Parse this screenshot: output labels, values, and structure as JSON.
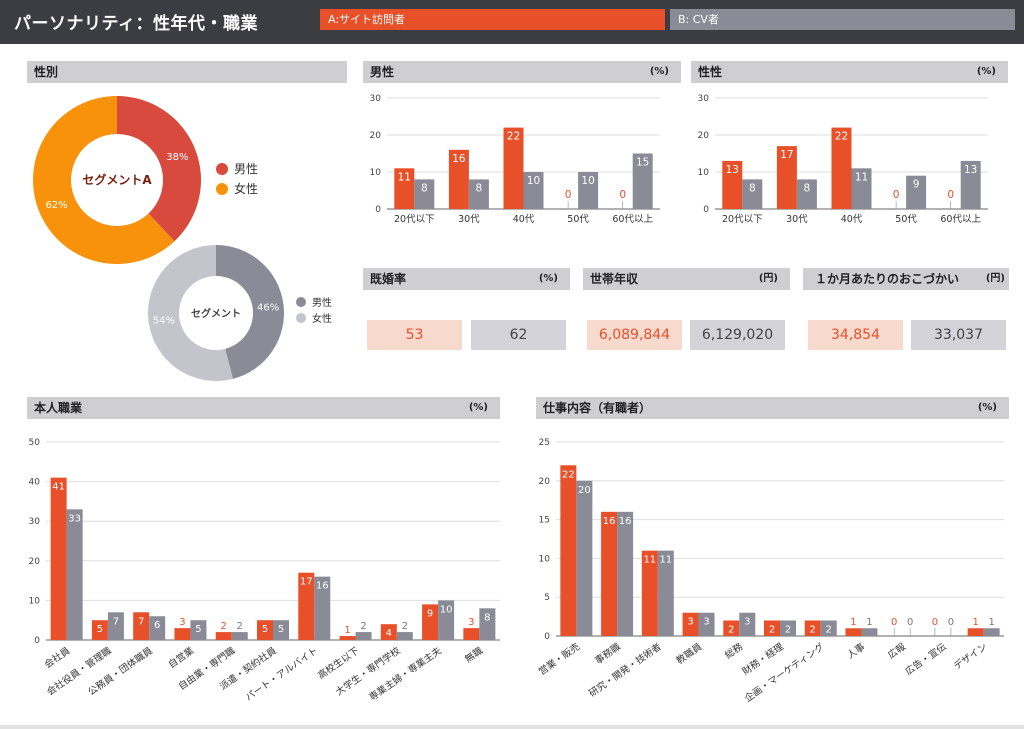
{
  "header": {
    "title": "パーソナリティ：性年代・職業",
    "legend_a": "A:サイト訪問者",
    "legend_b": "B: CV者"
  },
  "colors": {
    "a": "#e8502a",
    "b": "#8a8b96",
    "female": "#f7920a",
    "male": "#d94a3e",
    "gray_male": "#8a8b96",
    "gray_female": "#c4c5cc"
  },
  "sections": {
    "gender": {
      "title": "性別"
    },
    "male": {
      "title": "男性",
      "unit": "(%)"
    },
    "female": {
      "title": "性性",
      "unit": "(%)"
    },
    "marriage": {
      "title": "既婚率",
      "unit": "(%)"
    },
    "income": {
      "title": "世帯年収",
      "unit": "(円)"
    },
    "allowance": {
      "title": "１か月あたりのおこづかい",
      "unit": "(円)"
    },
    "occupation": {
      "title": "本人職業",
      "unit": "(%)"
    },
    "job": {
      "title": "仕事内容（有職者）",
      "unit": "(%)"
    }
  },
  "kpi": {
    "marriage": {
      "a": "53",
      "b": "62"
    },
    "income": {
      "a": "6,089,844",
      "b": "6,129,020"
    },
    "allowance": {
      "a": "34,854",
      "b": "33,037"
    }
  },
  "chart_data": [
    {
      "id": "donut-a",
      "type": "pie",
      "center_label": "セグメントA",
      "slices": [
        {
          "name": "男性",
          "value": 38,
          "label": "38%"
        },
        {
          "name": "女性",
          "value": 62,
          "label": "62%"
        }
      ],
      "legend": [
        "男性",
        "女性"
      ]
    },
    {
      "id": "donut-b",
      "type": "pie",
      "center_label": "セグメント",
      "slices": [
        {
          "name": "男性",
          "value": 46,
          "label": "46%"
        },
        {
          "name": "女性",
          "value": 54,
          "label": "54%"
        }
      ],
      "legend": [
        "男性",
        "女性"
      ]
    },
    {
      "id": "male-age",
      "type": "bar",
      "categories": [
        "20代以下",
        "30代",
        "40代",
        "50代",
        "60代以上"
      ],
      "series": [
        {
          "values": [
            11,
            16,
            22,
            0,
            0
          ]
        },
        {
          "values": [
            8,
            8,
            10,
            10,
            15
          ]
        }
      ],
      "yticks": [
        0,
        10,
        20,
        30
      ],
      "ylim": [
        0,
        30
      ]
    },
    {
      "id": "female-age",
      "type": "bar",
      "categories": [
        "20代以下",
        "30代",
        "40代",
        "50代",
        "60代以上"
      ],
      "series": [
        {
          "values": [
            13,
            17,
            22,
            0,
            0
          ]
        },
        {
          "values": [
            8,
            8,
            11,
            9,
            13
          ]
        }
      ],
      "yticks": [
        0,
        10,
        20,
        30
      ],
      "ylim": [
        0,
        30
      ]
    },
    {
      "id": "occupation",
      "type": "bar",
      "categories": [
        "会社員",
        "会社役員・管理職",
        "公務員・団体職員",
        "自営業",
        "自由業・専門職",
        "派遣・契約社員",
        "パート・アルバイト",
        "高校生以下",
        "大学生・専門学校",
        "専業主婦・専業主夫",
        "無職"
      ],
      "series": [
        {
          "values": [
            41,
            5,
            7,
            3,
            2,
            5,
            17,
            1,
            4,
            9,
            3
          ]
        },
        {
          "values": [
            33,
            7,
            6,
            5,
            2,
            5,
            16,
            2,
            2,
            10,
            8
          ]
        }
      ],
      "yticks": [
        0,
        10,
        20,
        30,
        40,
        50
      ],
      "ylim": [
        0,
        50
      ]
    },
    {
      "id": "job",
      "type": "bar",
      "categories": [
        "営業・販売",
        "事務職",
        "研究・開発・技術者",
        "教職員",
        "総務",
        "財務・経理",
        "企画・マーケティング",
        "人事",
        "広報",
        "広告・宣伝",
        "デザイン"
      ],
      "series": [
        {
          "values": [
            22,
            16,
            11,
            3,
            2,
            2,
            2,
            1,
            0,
            0,
            1
          ]
        },
        {
          "values": [
            20,
            16,
            11,
            3,
            3,
            2,
            2,
            1,
            0,
            0,
            1
          ]
        }
      ],
      "yticks": [
        0,
        5,
        10,
        15,
        20,
        25
      ],
      "ylim": [
        0,
        25
      ]
    }
  ]
}
